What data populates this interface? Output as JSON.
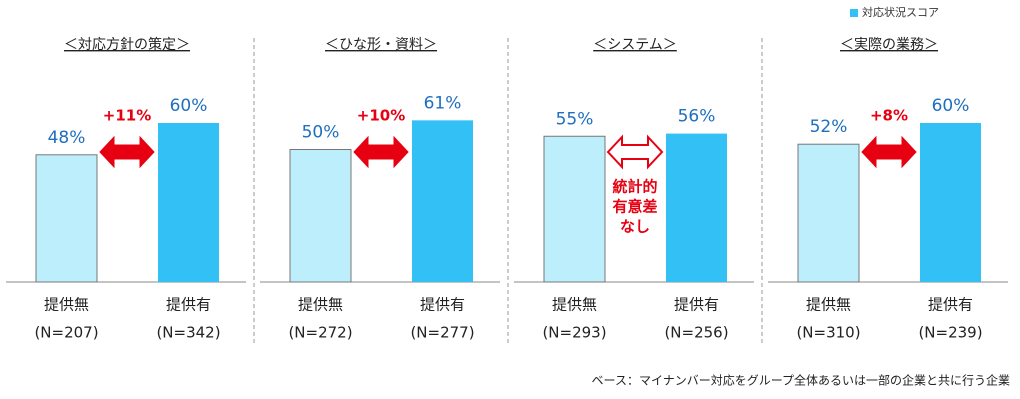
{
  "chart_data": [
    {
      "type": "bar",
      "title": "＜対応方針の策定＞",
      "categories": [
        "提供無",
        "提供有"
      ],
      "sample_sizes": [
        "(N=207)",
        "(N=342)"
      ],
      "values": [
        48,
        60
      ],
      "value_labels": [
        "48%",
        "60%"
      ],
      "colors": [
        "#bdeefb",
        "#33c1f5"
      ],
      "ylim": [
        0,
        100
      ],
      "annotation": [
        "+11%"
      ],
      "arrow_style": "solid"
    },
    {
      "type": "bar",
      "title": "＜ひな形・資料＞",
      "categories": [
        "提供無",
        "提供有"
      ],
      "sample_sizes": [
        "(N=272)",
        "(N=277)"
      ],
      "values": [
        50,
        61
      ],
      "value_labels": [
        "50%",
        "61%"
      ],
      "colors": [
        "#bdeefb",
        "#33c1f5"
      ],
      "ylim": [
        0,
        100
      ],
      "annotation": [
        "+10%"
      ],
      "arrow_style": "solid"
    },
    {
      "type": "bar",
      "title": "＜システム＞",
      "categories": [
        "提供無",
        "提供有"
      ],
      "sample_sizes": [
        "(N=293)",
        "(N=256)"
      ],
      "values": [
        55,
        56
      ],
      "value_labels": [
        "55%",
        "56%"
      ],
      "colors": [
        "#bdeefb",
        "#33c1f5"
      ],
      "ylim": [
        0,
        100
      ],
      "annotation": [
        "統計的",
        "有意差",
        "なし"
      ],
      "arrow_style": "outline"
    },
    {
      "type": "bar",
      "title": "＜実際の業務＞",
      "categories": [
        "提供無",
        "提供有"
      ],
      "sample_sizes": [
        "(N=310)",
        "(N=239)"
      ],
      "values": [
        52,
        60
      ],
      "value_labels": [
        "52%",
        "60%"
      ],
      "colors": [
        "#bdeefb",
        "#33c1f5"
      ],
      "ylim": [
        0,
        100
      ],
      "annotation": [
        "+8%"
      ],
      "arrow_style": "solid"
    }
  ],
  "legend": {
    "label": "対応状況スコア",
    "color": "#33c1f5"
  },
  "footnote": "ベース：マイナンバー対応をグループ全体あるいは一部の企業と共に行う企業"
}
